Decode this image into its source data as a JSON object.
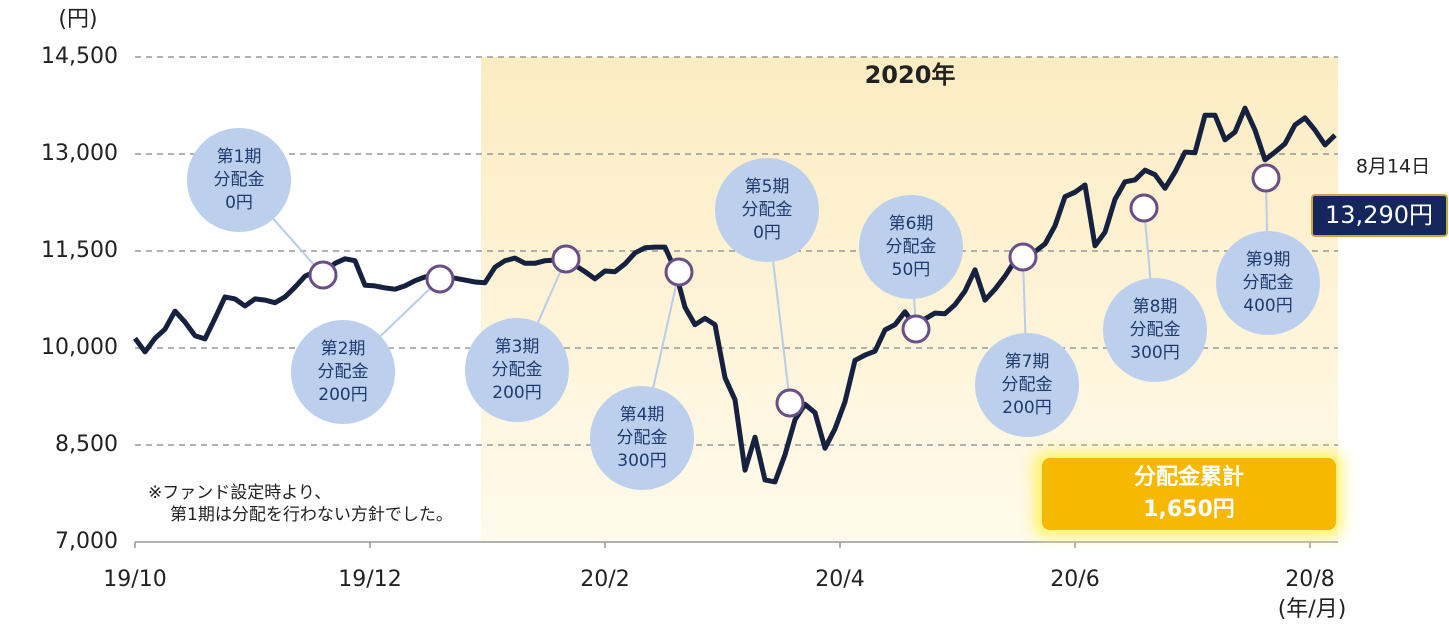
{
  "chart_data": {
    "type": "line",
    "highlight_label": "2020年",
    "ylabel": "(円)",
    "xlabel": "(年/月)",
    "ylim": [
      7000,
      14500
    ],
    "yticks": [
      {
        "value": 7000,
        "label": "7,000"
      },
      {
        "value": 8500,
        "label": "8,500"
      },
      {
        "value": 10000,
        "label": "10,000"
      },
      {
        "value": 11500,
        "label": "11,500"
      },
      {
        "value": 13000,
        "label": "13,000"
      },
      {
        "value": 14500,
        "label": "14,500"
      }
    ],
    "xticks": [
      "19/10",
      "19/12",
      "20/2",
      "20/4",
      "20/6",
      "20/8"
    ],
    "grid": true,
    "series": [
      {
        "color": "#15213f",
        "values": [
          10150,
          9940,
          10150,
          10290,
          10570,
          10400,
          10190,
          10140,
          10460,
          10790,
          10760,
          10650,
          10760,
          10740,
          10700,
          10790,
          10940,
          11110,
          11180,
          11180,
          11310,
          11380,
          11350,
          10970,
          10960,
          10930,
          10910,
          10960,
          11040,
          11100,
          11110,
          11100,
          11080,
          11050,
          11020,
          11010,
          11250,
          11350,
          11390,
          11310,
          11310,
          11350,
          11360,
          11360,
          11280,
          11180,
          11070,
          11190,
          11180,
          11300,
          11470,
          11550,
          11560,
          11560,
          11210,
          10630,
          10360,
          10460,
          10360,
          9540,
          9200,
          8110,
          8620,
          7960,
          7930,
          8350,
          8890,
          9130,
          9000,
          8450,
          8750,
          9170,
          9810,
          9890,
          9950,
          10280,
          10360,
          10560,
          10340,
          10450,
          10540,
          10530,
          10670,
          10880,
          11210,
          10740,
          10910,
          11110,
          11350,
          11390,
          11490,
          11610,
          11890,
          12340,
          12410,
          12520,
          11580,
          11790,
          12300,
          12570,
          12600,
          12750,
          12680,
          12470,
          12720,
          13030,
          13020,
          13600,
          13600,
          13220,
          13340,
          13710,
          13370,
          12910,
          13030,
          13160,
          13450,
          13560,
          13370,
          13140,
          13290
        ]
      }
    ],
    "distributions": [
      {
        "period": "第1期",
        "label": "分配金",
        "amount": "0円"
      },
      {
        "period": "第2期",
        "label": "分配金",
        "amount": "200円"
      },
      {
        "period": "第3期",
        "label": "分配金",
        "amount": "200円"
      },
      {
        "period": "第4期",
        "label": "分配金",
        "amount": "300円"
      },
      {
        "period": "第5期",
        "label": "分配金",
        "amount": "0円"
      },
      {
        "period": "第6期",
        "label": "分配金",
        "amount": "50円"
      },
      {
        "period": "第7期",
        "label": "分配金",
        "amount": "200円"
      },
      {
        "period": "第8期",
        "label": "分配金",
        "amount": "300円"
      },
      {
        "period": "第9期",
        "label": "分配金",
        "amount": "400円"
      }
    ],
    "end_label": {
      "date": "8月14日",
      "value_label": "13,290円"
    },
    "total": {
      "title": "分配金累計",
      "value": "1,650円"
    },
    "note": [
      "※ファンド設定時より、",
      "第1期は分配を行わない方針でした。"
    ]
  }
}
